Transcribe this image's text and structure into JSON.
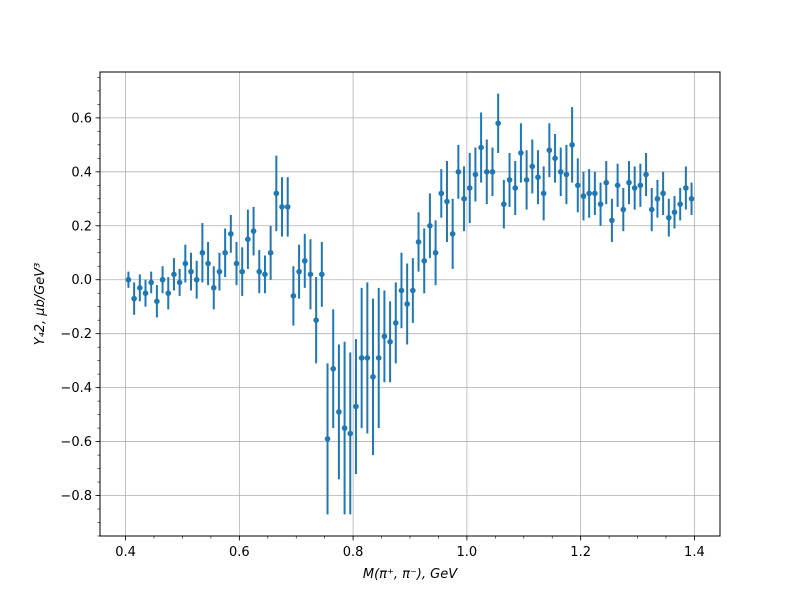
{
  "chart_data": {
    "type": "scatter",
    "title": "",
    "xlabel": "M(π⁺, π⁻), GeV",
    "ylabel": "Y₄2, μb/GeV³",
    "xlim": [
      0.355,
      1.445
    ],
    "ylim": [
      -0.95,
      0.77
    ],
    "xticks": [
      0.4,
      0.6,
      0.8,
      1.0,
      1.2,
      1.4
    ],
    "xtick_labels": [
      "0.4",
      "0.6",
      "0.8",
      "1.0",
      "1.2",
      "1.4"
    ],
    "yticks": [
      -0.8,
      -0.6,
      -0.4,
      -0.2,
      0.0,
      0.2,
      0.4,
      0.6
    ],
    "ytick_labels": [
      "−0.8",
      "−0.6",
      "−0.4",
      "−0.2",
      "0.0",
      "0.2",
      "0.4",
      "0.6"
    ],
    "grid": true,
    "color": "#1f77b4",
    "series": [
      {
        "x": [
          0.405,
          0.415,
          0.425,
          0.435,
          0.445,
          0.455,
          0.465,
          0.475,
          0.485,
          0.495,
          0.505,
          0.515,
          0.525,
          0.535,
          0.545,
          0.555,
          0.565,
          0.575,
          0.585,
          0.595,
          0.605,
          0.615,
          0.625,
          0.635,
          0.645,
          0.655,
          0.665,
          0.675,
          0.685,
          0.695,
          0.705,
          0.715,
          0.725,
          0.735,
          0.745,
          0.755,
          0.765,
          0.775,
          0.785,
          0.795,
          0.805,
          0.815,
          0.825,
          0.835,
          0.845,
          0.855,
          0.865,
          0.875,
          0.885,
          0.895,
          0.905,
          0.915,
          0.925,
          0.935,
          0.945,
          0.955,
          0.965,
          0.975,
          0.985,
          0.995,
          1.005,
          1.015,
          1.025,
          1.035,
          1.045,
          1.055,
          1.065,
          1.075,
          1.085,
          1.095,
          1.105,
          1.115,
          1.125,
          1.135,
          1.145,
          1.155,
          1.165,
          1.175,
          1.185,
          1.195,
          1.205,
          1.215,
          1.225,
          1.235,
          1.245,
          1.255,
          1.265,
          1.275,
          1.285,
          1.295,
          1.305,
          1.315,
          1.325,
          1.335,
          1.345,
          1.355,
          1.365,
          1.375,
          1.385,
          1.395
        ],
        "y": [
          0.0,
          -0.07,
          -0.03,
          -0.05,
          -0.01,
          -0.08,
          0.0,
          -0.05,
          0.02,
          -0.01,
          0.06,
          0.03,
          0.0,
          0.1,
          0.06,
          -0.03,
          0.03,
          0.1,
          0.17,
          0.06,
          0.03,
          0.15,
          0.18,
          0.03,
          0.02,
          0.1,
          0.32,
          0.27,
          0.27,
          -0.06,
          0.03,
          0.07,
          0.02,
          -0.15,
          0.02,
          -0.59,
          -0.33,
          -0.49,
          -0.55,
          -0.57,
          -0.47,
          -0.29,
          -0.29,
          -0.36,
          -0.29,
          -0.21,
          -0.23,
          -0.16,
          -0.04,
          -0.09,
          -0.04,
          0.14,
          0.07,
          0.2,
          0.1,
          0.32,
          0.29,
          0.17,
          0.4,
          0.3,
          0.34,
          0.39,
          0.49,
          0.4,
          0.4,
          0.58,
          0.28,
          0.37,
          0.34,
          0.47,
          0.37,
          0.42,
          0.38,
          0.32,
          0.48,
          0.45,
          0.4,
          0.39,
          0.5,
          0.35,
          0.31,
          0.32,
          0.32,
          0.28,
          0.36,
          0.22,
          0.35,
          0.26,
          0.36,
          0.34,
          0.35,
          0.39,
          0.26,
          0.3,
          0.32,
          0.23,
          0.25,
          0.28,
          0.34,
          0.3
        ],
        "err": [
          0.03,
          0.06,
          0.05,
          0.05,
          0.04,
          0.06,
          0.05,
          0.06,
          0.06,
          0.05,
          0.07,
          0.07,
          0.07,
          0.11,
          0.08,
          0.08,
          0.07,
          0.09,
          0.07,
          0.08,
          0.09,
          0.11,
          0.09,
          0.08,
          0.07,
          0.1,
          0.14,
          0.11,
          0.11,
          0.11,
          0.1,
          0.1,
          0.13,
          0.16,
          0.12,
          0.28,
          0.22,
          0.25,
          0.32,
          0.3,
          0.25,
          0.26,
          0.28,
          0.29,
          0.26,
          0.17,
          0.15,
          0.15,
          0.14,
          0.15,
          0.12,
          0.11,
          0.12,
          0.12,
          0.12,
          0.09,
          0.15,
          0.13,
          0.1,
          0.12,
          0.13,
          0.1,
          0.13,
          0.12,
          0.09,
          0.11,
          0.09,
          0.1,
          0.1,
          0.11,
          0.11,
          0.1,
          0.1,
          0.1,
          0.1,
          0.09,
          0.09,
          0.11,
          0.14,
          0.1,
          0.09,
          0.09,
          0.08,
          0.08,
          0.08,
          0.08,
          0.08,
          0.08,
          0.08,
          0.08,
          0.08,
          0.08,
          0.08,
          0.07,
          0.08,
          0.07,
          0.06,
          0.06,
          0.08,
          0.06
        ]
      }
    ]
  }
}
